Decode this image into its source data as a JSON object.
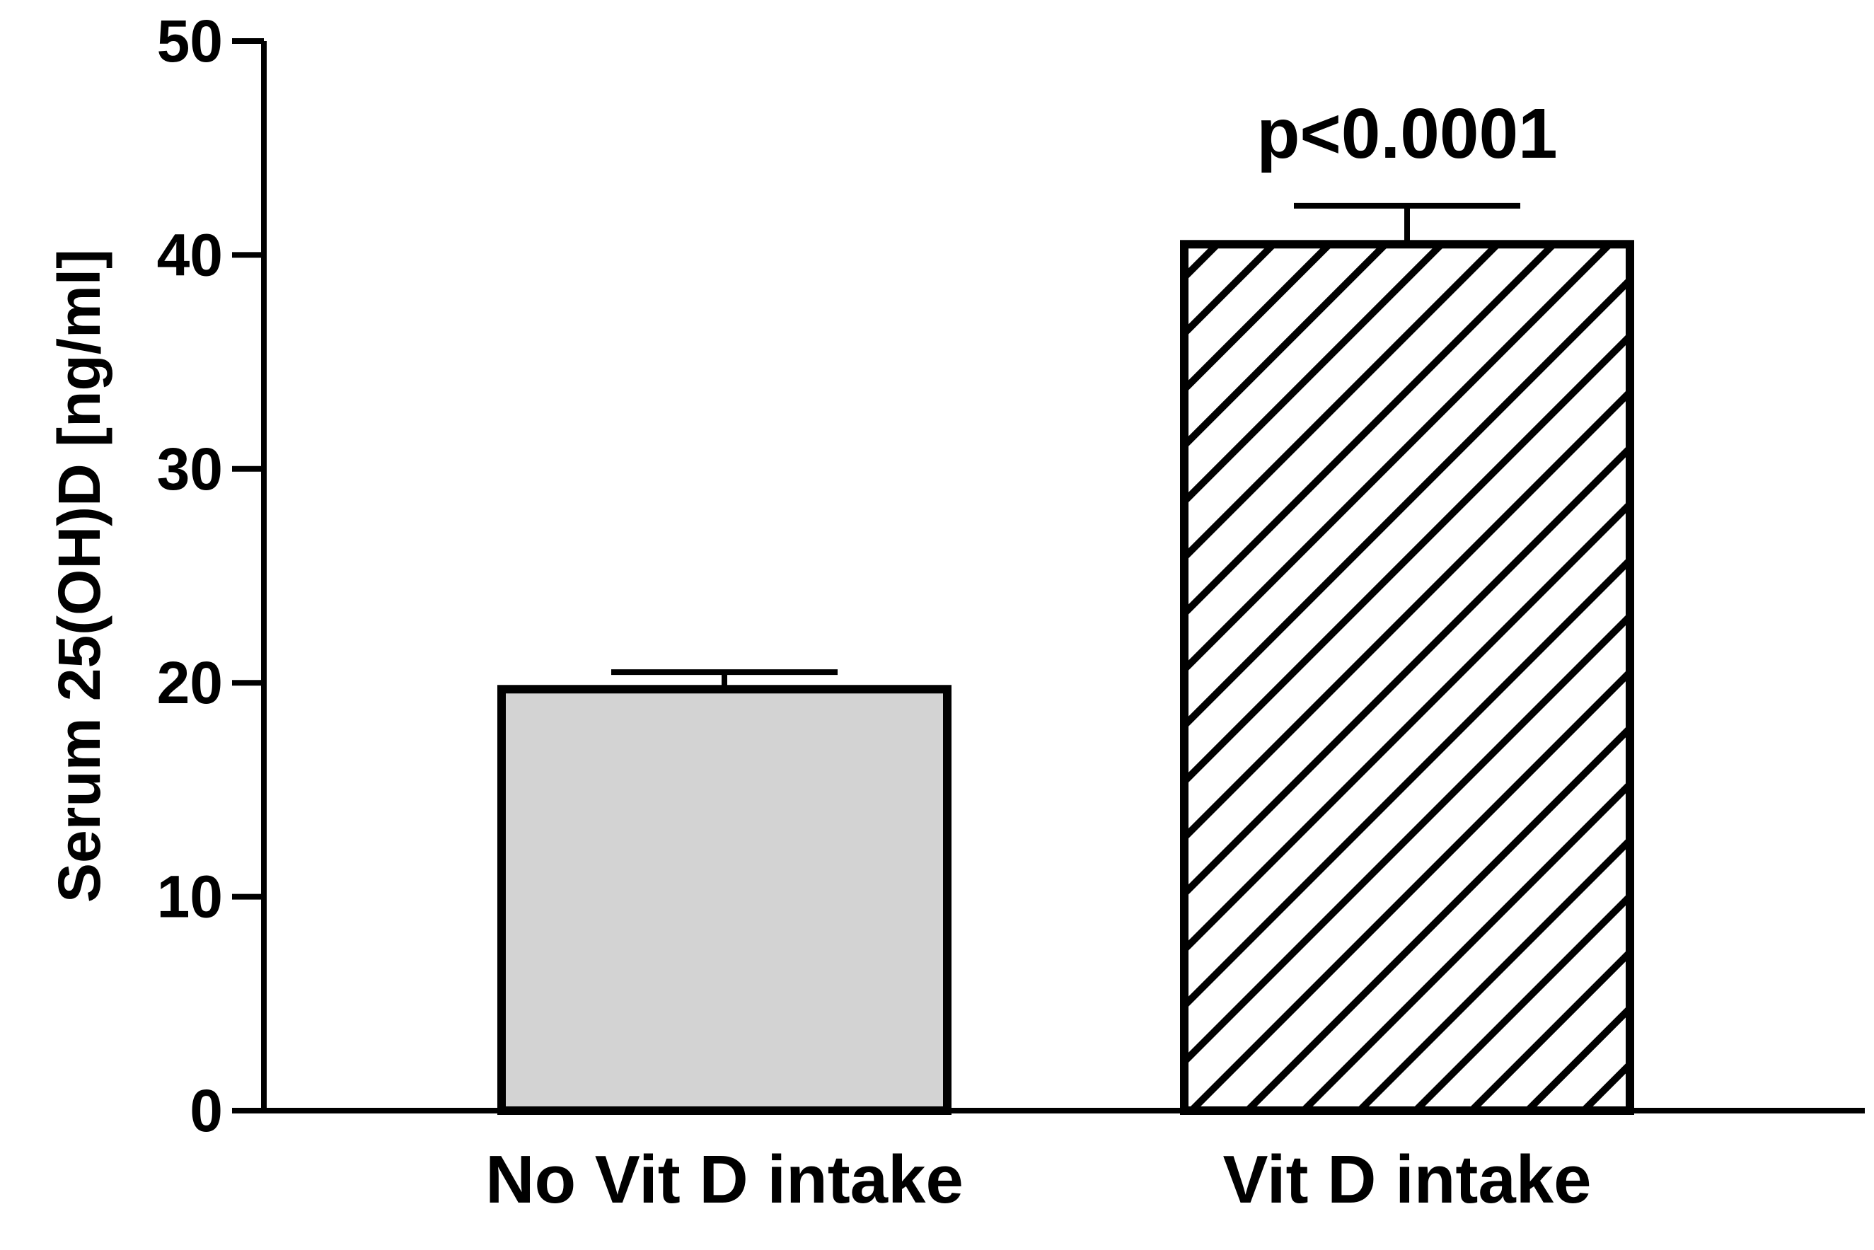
{
  "chart_data": {
    "type": "bar",
    "title": "",
    "xlabel": "",
    "ylabel": "Serum 25(OH)D [ng/ml]",
    "ylim": [
      0,
      50
    ],
    "yticks": [
      0,
      10,
      20,
      30,
      40,
      50
    ],
    "grid": false,
    "categories": [
      "No Vit D intake",
      "Vit D intake"
    ],
    "values": [
      19.7,
      40.5
    ],
    "error_upper": [
      0.8,
      1.8
    ],
    "bar_fills": [
      "solid-light-gray",
      "diagonal-hatch"
    ],
    "annotations": [
      {
        "category": "Vit D intake",
        "text": "p<0.0001"
      }
    ]
  },
  "colors": {
    "bar_gray": "#d3d3d3",
    "stroke": "#000000",
    "background": "#ffffff"
  }
}
